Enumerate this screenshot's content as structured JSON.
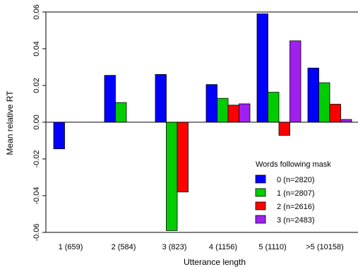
{
  "chart_data": {
    "type": "bar",
    "xlabel": "Utterance length",
    "ylabel": "Mean relative RT",
    "ylim": [
      -0.06,
      0.06
    ],
    "yticks": [
      -0.06,
      -0.04,
      -0.02,
      0.0,
      0.02,
      0.04,
      0.06
    ],
    "ytick_labels": [
      "-0.06",
      "-0.04",
      "-0.02",
      "0.00",
      "0.02",
      "0.04",
      "0.06"
    ],
    "categories": [
      "1 (659)",
      "2 (584)",
      "3 (823)",
      "4 (1156)",
      "5 (1110)",
      ">5 (10158)"
    ],
    "legend": {
      "title": "Words following mask",
      "position": "bottom-right"
    },
    "series": [
      {
        "name": "0 (n=2820)",
        "color": "#0000ff",
        "values": [
          -0.0145,
          0.0255,
          0.026,
          0.0205,
          0.059,
          0.0295
        ]
      },
      {
        "name": "1 (n=2807)",
        "color": "#00cc00",
        "values": [
          0.0,
          0.0107,
          -0.059,
          0.013,
          0.0163,
          0.0215
        ]
      },
      {
        "name": "2 (n=2616)",
        "color": "#ff0000",
        "values": [
          0.0,
          0.0,
          -0.038,
          0.0093,
          -0.0072,
          0.0098
        ]
      },
      {
        "name": "3 (n=2483)",
        "color": "#a020f0",
        "values": [
          0.0,
          0.0,
          0.0,
          0.01,
          0.0443,
          0.0015
        ]
      }
    ]
  }
}
